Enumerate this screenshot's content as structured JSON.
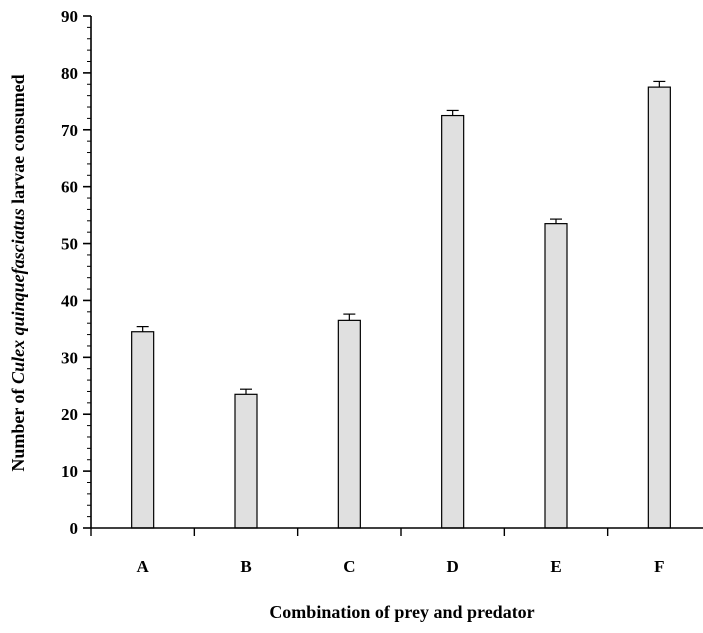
{
  "chart_data": {
    "type": "bar",
    "categories": [
      "A",
      "B",
      "C",
      "D",
      "E",
      "F"
    ],
    "values": [
      34.5,
      23.5,
      36.5,
      72.5,
      53.5,
      77.5
    ],
    "error": [
      0.9,
      0.9,
      1.1,
      0.9,
      0.8,
      1.0
    ],
    "ylim": [
      0,
      90
    ],
    "yticks": [
      0,
      10,
      20,
      30,
      40,
      50,
      60,
      70,
      80,
      90
    ],
    "xlabel": "Combination of prey and predator",
    "ylabel_parts": {
      "before": "Number of ",
      "italic": "Culex quinquefasciatus",
      "after": " larvae consumed"
    },
    "bar_color": "#e0e0e0",
    "grid": false,
    "legend": "none"
  }
}
